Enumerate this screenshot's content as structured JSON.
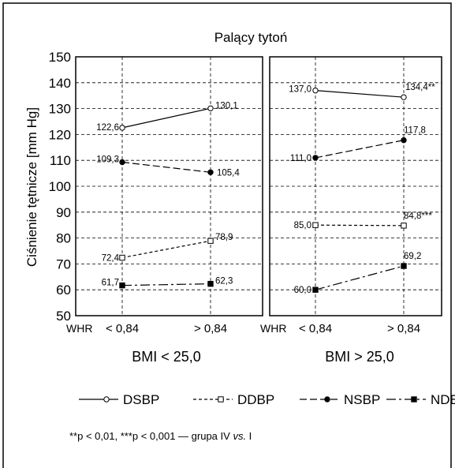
{
  "chart_data": {
    "type": "line",
    "title": "Palący tytoń",
    "ylabel": "Ciśnienie tętnicze [mm Hg]",
    "ylim": [
      50,
      150
    ],
    "yticks": [
      "150",
      "140",
      "130",
      "120",
      "110",
      "100",
      "90",
      "80",
      "70",
      "60",
      "50"
    ],
    "grid": true,
    "categories": [
      "< 0,84",
      "> 0,84"
    ],
    "whr_label": "WHR",
    "panels": [
      {
        "group": "BMI < 25,0",
        "series": [
          {
            "name": "DSBP",
            "values": [
              122.6,
              130.1
            ],
            "labels": [
              "122,6",
              "130,1"
            ]
          },
          {
            "name": "NSBP",
            "values": [
              109.3,
              105.4
            ],
            "labels": [
              "109,3",
              "105,4"
            ]
          },
          {
            "name": "DDBP",
            "values": [
              72.4,
              78.9
            ],
            "labels": [
              "72,4",
              "78,9"
            ]
          },
          {
            "name": "NDBP",
            "values": [
              61.7,
              62.3
            ],
            "labels": [
              "61,7",
              "62,3"
            ]
          }
        ]
      },
      {
        "group": "BMI > 25,0",
        "series": [
          {
            "name": "DSBP",
            "values": [
              137.0,
              134.4
            ],
            "labels": [
              "137,0",
              "134,4**"
            ]
          },
          {
            "name": "NSBP",
            "values": [
              111.0,
              117.8
            ],
            "labels": [
              "111,0",
              "117,8"
            ]
          },
          {
            "name": "DDBP",
            "values": [
              85.0,
              84.8
            ],
            "labels": [
              "85,0",
              "84,8***"
            ]
          },
          {
            "name": "NDBP",
            "values": [
              60.0,
              69.2
            ],
            "labels": [
              "60,0",
              "69,2"
            ]
          }
        ]
      }
    ],
    "legend": [
      "DSBP",
      "DDBP",
      "NSBP",
      "NDBP"
    ],
    "legend_position": "bottom",
    "footnote": "**p < 0,01, ***p < 0,001 — grupa IV vs. I"
  }
}
